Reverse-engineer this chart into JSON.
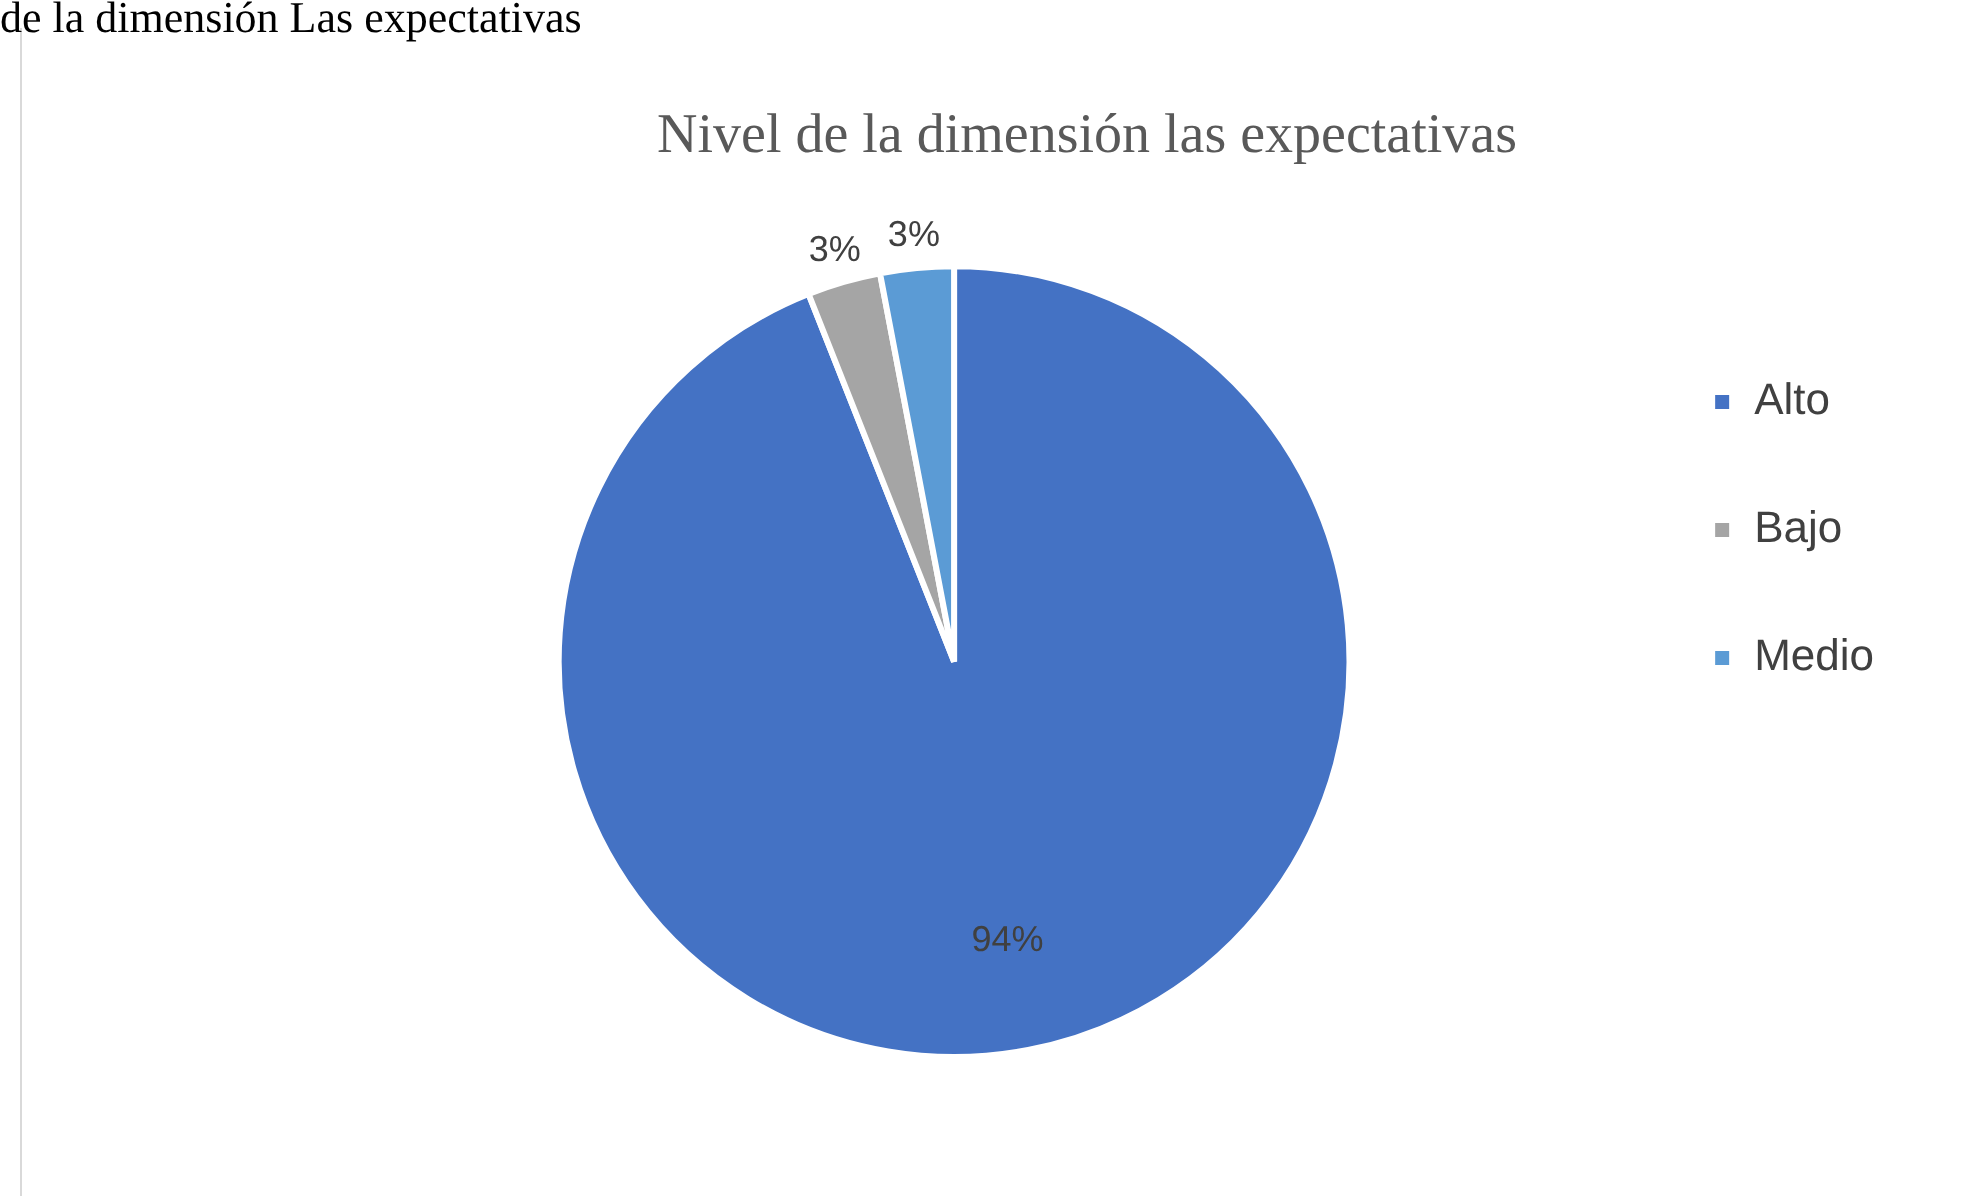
{
  "chart_data": {
    "type": "pie",
    "title": "Nivel de la dimensión las expectativas",
    "annotations": [
      "de la dimensión Las expectativas"
    ],
    "categories": [
      "Alto",
      "Bajo",
      "Medio"
    ],
    "values": [
      94,
      3,
      3
    ],
    "colors": [
      "#4472c4",
      "#a5a5a5",
      "#5b9bd5"
    ],
    "value_labels": [
      "94%",
      "3%",
      "3%"
    ],
    "legend": "right"
  }
}
